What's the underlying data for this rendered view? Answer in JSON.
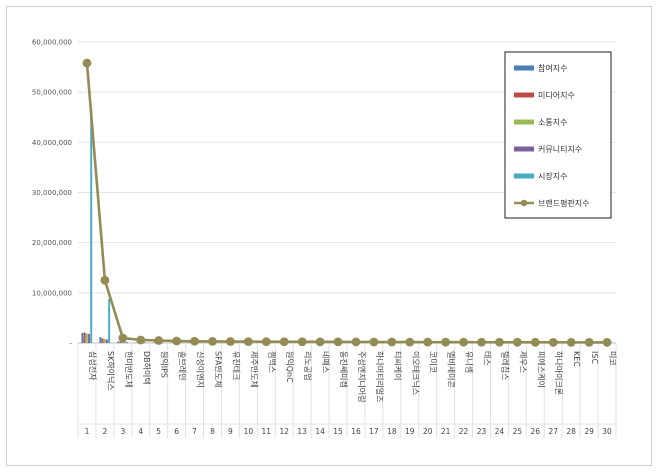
{
  "chart_data": {
    "type": "bar",
    "title": "",
    "xlabel": "",
    "ylabel": "",
    "ylim": [
      0,
      60000000
    ],
    "y_ticks": [
      "-",
      "10,000,000",
      "20,000,000",
      "30,000,000",
      "40,000,000",
      "50,000,000",
      "60,000,000"
    ],
    "y_tick_values": [
      0,
      10000000,
      20000000,
      30000000,
      40000000,
      50000000,
      60000000
    ],
    "grid": true,
    "legend_position": "right",
    "ranks": [
      "1",
      "2",
      "3",
      "4",
      "5",
      "6",
      "7",
      "8",
      "9",
      "10",
      "11",
      "12",
      "13",
      "14",
      "15",
      "16",
      "17",
      "18",
      "19",
      "20",
      "21",
      "22",
      "23",
      "24",
      "25",
      "26",
      "27",
      "28",
      "29",
      "30"
    ],
    "categories": [
      "삼성전자",
      "SK하이닉스",
      "한미반도체",
      "DB하이텍",
      "원익IPS",
      "솔브레인",
      "신성이엔지",
      "SFA반도체",
      "유진테크",
      "제주반도체",
      "젬백스",
      "원익QnC",
      "리노공업",
      "네패스",
      "동진쎄미켐",
      "주성엔지니어링",
      "하나머티리얼즈",
      "티씨케이",
      "이오테크닉스",
      "코미코",
      "엘비세미콘",
      "유니셈",
      "테스",
      "텔레칩스",
      "제우스",
      "피에스케이",
      "하나마이크론",
      "KEC",
      "ISC",
      "미코"
    ],
    "series": [
      {
        "name": "참여지수",
        "color": "#4a7ebb",
        "kind": "bar",
        "values": [
          2000000,
          1200000,
          300000,
          120000,
          100000,
          80000,
          70000,
          60000,
          60000,
          50000,
          50000,
          40000,
          40000,
          40000,
          35000,
          35000,
          30000,
          30000,
          30000,
          25000,
          25000,
          25000,
          20000,
          20000,
          20000,
          20000,
          15000,
          15000,
          15000,
          15000
        ]
      },
      {
        "name": "미디어지수",
        "color": "#be4b48",
        "kind": "bar",
        "values": [
          2100000,
          900000,
          250000,
          100000,
          90000,
          70000,
          60000,
          50000,
          50000,
          40000,
          40000,
          35000,
          35000,
          30000,
          30000,
          30000,
          25000,
          25000,
          25000,
          20000,
          20000,
          20000,
          20000,
          15000,
          15000,
          15000,
          15000,
          10000,
          10000,
          10000
        ]
      },
      {
        "name": "소통지수",
        "color": "#98b954",
        "kind": "bar",
        "values": [
          1900000,
          800000,
          200000,
          90000,
          80000,
          60000,
          50000,
          45000,
          45000,
          35000,
          35000,
          30000,
          30000,
          25000,
          25000,
          25000,
          20000,
          20000,
          20000,
          15000,
          15000,
          15000,
          15000,
          10000,
          10000,
          10000,
          10000,
          10000,
          10000,
          10000
        ]
      },
      {
        "name": "커뮤니티지수",
        "color": "#7d60a0",
        "kind": "bar",
        "values": [
          1800000,
          700000,
          150000,
          80000,
          70000,
          50000,
          40000,
          40000,
          35000,
          30000,
          30000,
          25000,
          25000,
          20000,
          20000,
          20000,
          15000,
          15000,
          15000,
          10000,
          10000,
          10000,
          10000,
          10000,
          10000,
          10000,
          10000,
          5000,
          5000,
          5000
        ]
      },
      {
        "name": "시장지수",
        "color": "#46aac5",
        "kind": "bar",
        "values": [
          47000000,
          8800000,
          200000,
          150000,
          120000,
          100000,
          90000,
          80000,
          70000,
          60000,
          60000,
          50000,
          50000,
          45000,
          45000,
          40000,
          40000,
          35000,
          35000,
          30000,
          30000,
          30000,
          25000,
          25000,
          25000,
          20000,
          20000,
          20000,
          15000,
          15000
        ]
      },
      {
        "name": "브랜드평판지수",
        "color": "#948a54",
        "kind": "line",
        "values": [
          55800000,
          12500000,
          1000000,
          600000,
          500000,
          400000,
          350000,
          320000,
          300000,
          280000,
          260000,
          250000,
          240000,
          230000,
          220000,
          210000,
          200000,
          190000,
          180000,
          170000,
          165000,
          160000,
          150000,
          145000,
          140000,
          135000,
          130000,
          125000,
          120000,
          115000
        ]
      }
    ]
  }
}
